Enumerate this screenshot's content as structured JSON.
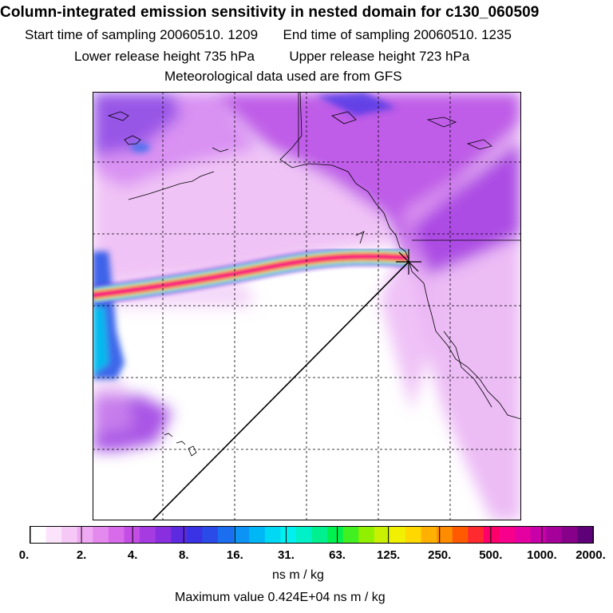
{
  "title": "Column-integrated emission sensitivity in nested domain for c130_060509",
  "sampling": {
    "start_label": "Start time of sampling",
    "start_value": "20060510.  1209",
    "end_label": "End time of sampling",
    "end_value": "20060510.  1235"
  },
  "release": {
    "lower_label": "Lower release height",
    "lower_value": "735 hPa",
    "upper_label": "Upper release height",
    "upper_value": "723 hPa"
  },
  "met_note": "Meteorological data used are from GFS",
  "colorbar": {
    "tick_labels": [
      "0.",
      "2.",
      "4.",
      "8.",
      "16.",
      "31.",
      "63.",
      "125.",
      "250.",
      "500.",
      "1000.",
      "2000."
    ],
    "colors": [
      "#ffffff",
      "#fbe4fb",
      "#f6c8f6",
      "#efa9f2",
      "#e489ee",
      "#d86bea",
      "#c44de6",
      "#a63be2",
      "#8a2fe0",
      "#5e2ae0",
      "#3a33e6",
      "#2a4be8",
      "#1b6ef0",
      "#0d93f4",
      "#00b7f6",
      "#00d8f4",
      "#00f0f0",
      "#00f0c8",
      "#00f090",
      "#00f050",
      "#40f020",
      "#90f000",
      "#c8f000",
      "#f0f000",
      "#ffd800",
      "#ffb000",
      "#ff8c00",
      "#ff5a00",
      "#ff2a30",
      "#ff006a",
      "#f8008c",
      "#e400a0",
      "#c800a8",
      "#a6009a",
      "#86008a",
      "#5e0078"
    ],
    "units": "ns m / kg"
  },
  "max_value_text": "Maximum value  0.424E+04 ns m / kg",
  "release_marker": "+"
}
